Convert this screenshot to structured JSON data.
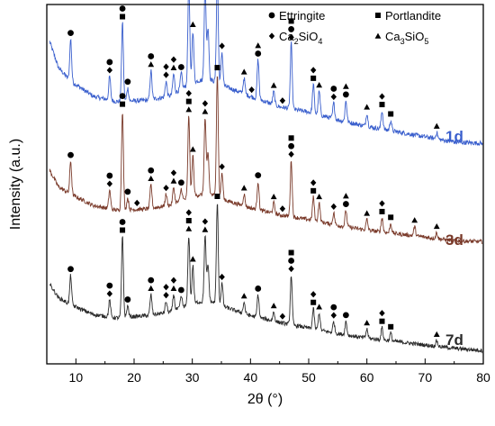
{
  "chart_data": {
    "type": "line",
    "title": "",
    "xlabel": "2θ (°)",
    "ylabel": "Intensity (a.u.)",
    "xlim": [
      5,
      80
    ],
    "xticks": [
      10,
      20,
      30,
      40,
      50,
      60,
      70,
      80
    ],
    "y_tick_labels": false,
    "grid": false,
    "legend_placement": "top-right",
    "legend": [
      {
        "name": "Ettringite",
        "marker": "circle"
      },
      {
        "name": "Portlandite",
        "marker": "square"
      },
      {
        "name": "Ca₂SiO₄",
        "marker": "diamond"
      },
      {
        "name": "Ca₃SiO₅",
        "marker": "triangle"
      }
    ],
    "series": [
      {
        "name": "1d",
        "color": "#3a5fcd",
        "baseline": [
          [
            5.5,
            0.82
          ],
          [
            7,
            0.62
          ],
          [
            9,
            0.52
          ],
          [
            13,
            0.4
          ],
          [
            17,
            0.36
          ],
          [
            22,
            0.37
          ],
          [
            26,
            0.4
          ],
          [
            29,
            0.48
          ],
          [
            31,
            0.52
          ],
          [
            33,
            0.53
          ],
          [
            36,
            0.47
          ],
          [
            40,
            0.4
          ],
          [
            45,
            0.32
          ],
          [
            50,
            0.28
          ],
          [
            55,
            0.22
          ],
          [
            60,
            0.17
          ],
          [
            65,
            0.13
          ],
          [
            70,
            0.09
          ],
          [
            75,
            0.05
          ],
          [
            80,
            0.04
          ]
        ],
        "peaks": [
          [
            9.1,
            0.32
          ],
          [
            15.8,
            0.18
          ],
          [
            18.0,
            0.6
          ],
          [
            18.9,
            0.1
          ],
          [
            22.9,
            0.22
          ],
          [
            25.5,
            0.12
          ],
          [
            26.8,
            0.15
          ],
          [
            28.1,
            0.12
          ],
          [
            29.4,
            0.78
          ],
          [
            30.1,
            0.4
          ],
          [
            32.2,
            0.72
          ],
          [
            32.7,
            0.4
          ],
          [
            34.3,
            0.82
          ],
          [
            35.1,
            0.25
          ],
          [
            38.9,
            0.12
          ],
          [
            41.3,
            0.3
          ],
          [
            44.0,
            0.1
          ],
          [
            47.0,
            0.5
          ],
          [
            50.8,
            0.22
          ],
          [
            51.8,
            0.18
          ],
          [
            54.3,
            0.12
          ],
          [
            56.4,
            0.16
          ],
          [
            60.0,
            0.1
          ],
          [
            62.6,
            0.14
          ],
          [
            64.1,
            0.08
          ],
          [
            72.0,
            0.05
          ]
        ],
        "amplitude": 1.0
      },
      {
        "name": "3d",
        "color": "#7a3a2a",
        "baseline": [
          [
            5.5,
            0.66
          ],
          [
            7,
            0.52
          ],
          [
            9,
            0.46
          ],
          [
            13,
            0.36
          ],
          [
            17,
            0.32
          ],
          [
            22,
            0.33
          ],
          [
            26,
            0.36
          ],
          [
            29,
            0.42
          ],
          [
            31,
            0.45
          ],
          [
            33,
            0.46
          ],
          [
            36,
            0.4
          ],
          [
            40,
            0.34
          ],
          [
            45,
            0.28
          ],
          [
            50,
            0.24
          ],
          [
            55,
            0.19
          ],
          [
            60,
            0.15
          ],
          [
            65,
            0.12
          ],
          [
            70,
            0.09
          ],
          [
            75,
            0.06
          ],
          [
            80,
            0.05
          ]
        ],
        "peaks": [
          [
            9.1,
            0.28
          ],
          [
            15.8,
            0.16
          ],
          [
            18.0,
            0.85
          ],
          [
            18.9,
            0.1
          ],
          [
            22.9,
            0.2
          ],
          [
            25.5,
            0.1
          ],
          [
            26.8,
            0.14
          ],
          [
            28.1,
            0.1
          ],
          [
            29.4,
            0.7
          ],
          [
            30.1,
            0.35
          ],
          [
            32.2,
            0.65
          ],
          [
            32.7,
            0.35
          ],
          [
            34.3,
            1.05
          ],
          [
            35.1,
            0.22
          ],
          [
            38.9,
            0.1
          ],
          [
            41.3,
            0.24
          ],
          [
            44.0,
            0.09
          ],
          [
            47.0,
            0.48
          ],
          [
            50.8,
            0.2
          ],
          [
            51.8,
            0.16
          ],
          [
            54.3,
            0.1
          ],
          [
            56.4,
            0.14
          ],
          [
            60.0,
            0.09
          ],
          [
            62.6,
            0.12
          ],
          [
            64.1,
            0.08
          ],
          [
            68.2,
            0.08
          ],
          [
            72.0,
            0.05
          ]
        ],
        "amplitude": 1.0
      },
      {
        "name": "7d",
        "color": "#2b2b2b",
        "baseline": [
          [
            5.5,
            0.62
          ],
          [
            7,
            0.5
          ],
          [
            9,
            0.44
          ],
          [
            13,
            0.35
          ],
          [
            17,
            0.32
          ],
          [
            22,
            0.34
          ],
          [
            26,
            0.37
          ],
          [
            29,
            0.43
          ],
          [
            31,
            0.46
          ],
          [
            33,
            0.47
          ],
          [
            36,
            0.41
          ],
          [
            40,
            0.34
          ],
          [
            45,
            0.28
          ],
          [
            50,
            0.23
          ],
          [
            55,
            0.18
          ],
          [
            60,
            0.14
          ],
          [
            65,
            0.11
          ],
          [
            70,
            0.08
          ],
          [
            75,
            0.05
          ],
          [
            80,
            0.03
          ]
        ],
        "peaks": [
          [
            9.1,
            0.26
          ],
          [
            15.8,
            0.15
          ],
          [
            18.0,
            0.72
          ],
          [
            18.9,
            0.1
          ],
          [
            22.9,
            0.18
          ],
          [
            25.5,
            0.1
          ],
          [
            26.8,
            0.14
          ],
          [
            28.1,
            0.1
          ],
          [
            29.4,
            0.62
          ],
          [
            30.1,
            0.34
          ],
          [
            32.2,
            0.58
          ],
          [
            32.7,
            0.32
          ],
          [
            34.3,
            0.9
          ],
          [
            35.1,
            0.2
          ],
          [
            38.9,
            0.1
          ],
          [
            41.3,
            0.2
          ],
          [
            44.0,
            0.08
          ],
          [
            47.0,
            0.44
          ],
          [
            50.8,
            0.18
          ],
          [
            51.8,
            0.15
          ],
          [
            54.3,
            0.1
          ],
          [
            56.4,
            0.12
          ],
          [
            60.0,
            0.08
          ],
          [
            62.6,
            0.11
          ],
          [
            64.1,
            0.07
          ],
          [
            72.0,
            0.05
          ]
        ],
        "amplitude": 1.0
      }
    ],
    "phase_markers": {
      "1d": [
        {
          "x": 9.1,
          "marks": [
            "circle"
          ]
        },
        {
          "x": 15.8,
          "marks": [
            "diamond",
            "circle"
          ]
        },
        {
          "x": 18.0,
          "marks": [
            "square",
            "circle"
          ]
        },
        {
          "x": 18.9,
          "marks": [
            "circle"
          ]
        },
        {
          "x": 22.9,
          "marks": [
            "triangle",
            "circle"
          ]
        },
        {
          "x": 25.5,
          "marks": [
            "diamond",
            "diamond"
          ]
        },
        {
          "x": 26.8,
          "marks": [
            "triangle",
            "diamond"
          ]
        },
        {
          "x": 28.1,
          "marks": [
            "circle"
          ]
        },
        {
          "x": 29.4,
          "marks": [
            "triangle",
            "square",
            "diamond"
          ]
        },
        {
          "x": 30.1,
          "marks": [
            "triangle"
          ]
        },
        {
          "x": 32.2,
          "marks": [
            "triangle",
            "diamond"
          ]
        },
        {
          "x": 34.3,
          "marks": [
            "triangle",
            "square"
          ]
        },
        {
          "x": 35.1,
          "marks": [
            "diamond"
          ]
        },
        {
          "x": 38.9,
          "marks": [
            "triangle"
          ]
        },
        {
          "x": 40.2,
          "marks": [
            "diamond"
          ]
        },
        {
          "x": 41.3,
          "marks": [
            "circle",
            "triangle"
          ]
        },
        {
          "x": 44.0,
          "marks": [
            "triangle"
          ]
        },
        {
          "x": 45.5,
          "marks": [
            "diamond"
          ]
        },
        {
          "x": 47.0,
          "marks": [
            "diamond",
            "circle",
            "square"
          ]
        },
        {
          "x": 50.8,
          "marks": [
            "square",
            "diamond"
          ]
        },
        {
          "x": 51.8,
          "marks": [
            "triangle"
          ]
        },
        {
          "x": 54.3,
          "marks": [
            "diamond",
            "circle"
          ]
        },
        {
          "x": 56.4,
          "marks": [
            "circle",
            "triangle"
          ]
        },
        {
          "x": 60.0,
          "marks": [
            "triangle"
          ]
        },
        {
          "x": 62.6,
          "marks": [
            "square",
            "diamond"
          ]
        },
        {
          "x": 64.1,
          "marks": [
            "square"
          ]
        },
        {
          "x": 72.0,
          "marks": [
            "triangle"
          ]
        }
      ],
      "3d": [
        {
          "x": 9.1,
          "marks": [
            "circle"
          ]
        },
        {
          "x": 15.8,
          "marks": [
            "diamond",
            "circle"
          ]
        },
        {
          "x": 18.0,
          "marks": [
            "square",
            "circle"
          ]
        },
        {
          "x": 18.9,
          "marks": [
            "circle"
          ]
        },
        {
          "x": 20.5,
          "marks": [
            "diamond"
          ]
        },
        {
          "x": 22.9,
          "marks": [
            "triangle",
            "circle"
          ]
        },
        {
          "x": 25.5,
          "marks": [
            "diamond"
          ]
        },
        {
          "x": 26.8,
          "marks": [
            "triangle",
            "diamond"
          ]
        },
        {
          "x": 28.1,
          "marks": [
            "circle"
          ]
        },
        {
          "x": 29.4,
          "marks": [
            "triangle",
            "square",
            "diamond"
          ]
        },
        {
          "x": 30.1,
          "marks": [
            "triangle"
          ]
        },
        {
          "x": 32.2,
          "marks": [
            "triangle",
            "diamond"
          ]
        },
        {
          "x": 34.3,
          "marks": [
            "square"
          ]
        },
        {
          "x": 35.1,
          "marks": [
            "diamond"
          ]
        },
        {
          "x": 38.9,
          "marks": [
            "triangle"
          ]
        },
        {
          "x": 41.3,
          "marks": [
            "circle"
          ]
        },
        {
          "x": 44.0,
          "marks": [
            "triangle"
          ]
        },
        {
          "x": 45.5,
          "marks": [
            "diamond"
          ]
        },
        {
          "x": 47.0,
          "marks": [
            "diamond",
            "circle",
            "square"
          ]
        },
        {
          "x": 50.8,
          "marks": [
            "square",
            "diamond"
          ]
        },
        {
          "x": 51.8,
          "marks": [
            "triangle"
          ]
        },
        {
          "x": 54.3,
          "marks": [
            "diamond"
          ]
        },
        {
          "x": 56.4,
          "marks": [
            "circle",
            "triangle"
          ]
        },
        {
          "x": 60.0,
          "marks": [
            "triangle"
          ]
        },
        {
          "x": 62.6,
          "marks": [
            "square",
            "diamond"
          ]
        },
        {
          "x": 64.1,
          "marks": [
            "square"
          ]
        },
        {
          "x": 68.2,
          "marks": [
            "triangle"
          ]
        },
        {
          "x": 72.0,
          "marks": [
            "triangle"
          ]
        }
      ],
      "7d": [
        {
          "x": 9.1,
          "marks": [
            "circle"
          ]
        },
        {
          "x": 15.8,
          "marks": [
            "diamond",
            "circle"
          ]
        },
        {
          "x": 18.0,
          "marks": [
            "square",
            "circle"
          ]
        },
        {
          "x": 18.9,
          "marks": [
            "circle"
          ]
        },
        {
          "x": 22.9,
          "marks": [
            "triangle",
            "circle"
          ]
        },
        {
          "x": 25.5,
          "marks": [
            "diamond",
            "diamond"
          ]
        },
        {
          "x": 26.8,
          "marks": [
            "triangle",
            "diamond"
          ]
        },
        {
          "x": 28.1,
          "marks": [
            "circle"
          ]
        },
        {
          "x": 29.4,
          "marks": [
            "triangle",
            "square",
            "diamond"
          ]
        },
        {
          "x": 30.1,
          "marks": [
            "triangle"
          ]
        },
        {
          "x": 32.2,
          "marks": [
            "triangle",
            "diamond"
          ]
        },
        {
          "x": 34.3,
          "marks": [
            "square"
          ]
        },
        {
          "x": 35.1,
          "marks": [
            "diamond"
          ]
        },
        {
          "x": 38.9,
          "marks": [
            "triangle"
          ]
        },
        {
          "x": 41.3,
          "marks": [
            "circle"
          ]
        },
        {
          "x": 44.0,
          "marks": [
            "triangle"
          ]
        },
        {
          "x": 45.5,
          "marks": [
            "diamond"
          ]
        },
        {
          "x": 47.0,
          "marks": [
            "diamond",
            "circle",
            "square"
          ]
        },
        {
          "x": 50.8,
          "marks": [
            "square",
            "diamond"
          ]
        },
        {
          "x": 51.8,
          "marks": [
            "triangle"
          ]
        },
        {
          "x": 54.3,
          "marks": [
            "diamond",
            "circle"
          ]
        },
        {
          "x": 56.4,
          "marks": [
            "circle"
          ]
        },
        {
          "x": 60.0,
          "marks": [
            "triangle"
          ]
        },
        {
          "x": 62.6,
          "marks": [
            "square",
            "diamond"
          ]
        },
        {
          "x": 64.1,
          "marks": [
            "square"
          ]
        },
        {
          "x": 72.0,
          "marks": [
            "triangle"
          ]
        }
      ]
    }
  }
}
